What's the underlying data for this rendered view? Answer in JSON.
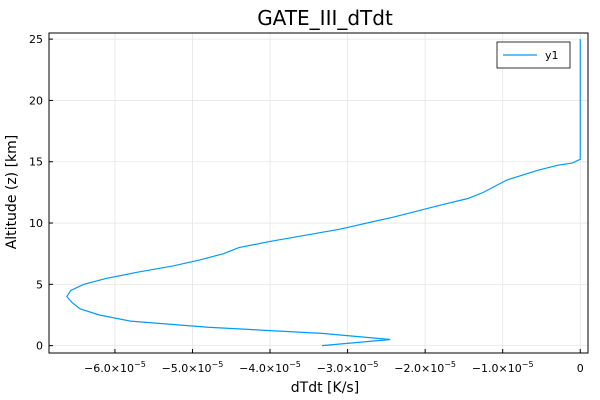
{
  "chart_data": {
    "type": "line",
    "title": "GATE_III_dTdt",
    "xlabel": "dTdt [K/s]",
    "ylabel": "Altitude (z) [km]",
    "xlim": [
      -6.85e-05,
      1e-06
    ],
    "ylim": [
      -0.6,
      25.5
    ],
    "grid": true,
    "legend_position": "top-right",
    "x_ticks": [
      {
        "value": -6e-05,
        "base": "−6.0×10",
        "exp": "−5"
      },
      {
        "value": -5e-05,
        "base": "−5.0×10",
        "exp": "−5"
      },
      {
        "value": -4e-05,
        "base": "−4.0×10",
        "exp": "−5"
      },
      {
        "value": -3e-05,
        "base": "−3.0×10",
        "exp": "−5"
      },
      {
        "value": -2e-05,
        "base": "−2.0×10",
        "exp": "−5"
      },
      {
        "value": -1e-05,
        "base": "−1.0×10",
        "exp": "−5"
      },
      {
        "value": 0,
        "base": "0",
        "exp": ""
      }
    ],
    "y_ticks": [
      0,
      5,
      10,
      15,
      20,
      25
    ],
    "series": [
      {
        "name": "y1",
        "color": "#009af9",
        "x": [
          -3.33e-05,
          -2.45e-05,
          -3.33e-05,
          -4.8e-05,
          -5.8e-05,
          -6.2e-05,
          -6.45e-05,
          -6.55e-05,
          -6.62e-05,
          -6.57e-05,
          -6.4e-05,
          -6.1e-05,
          -5.7e-05,
          -5.25e-05,
          -4.9e-05,
          -4.6e-05,
          -4.4e-05,
          -4e-05,
          -3.55e-05,
          -3.1e-05,
          -2.4e-05,
          -1.78e-05,
          -1.45e-05,
          -1.25e-05,
          -9.5e-06,
          -5.5e-06,
          -3e-06,
          -1e-06,
          0,
          0,
          0,
          0
        ],
        "y": [
          0,
          0.5,
          1.0,
          1.5,
          2.0,
          2.5,
          3.0,
          3.5,
          4.0,
          4.5,
          5.0,
          5.5,
          6.0,
          6.5,
          7.0,
          7.5,
          8.0,
          8.5,
          9.0,
          9.5,
          10.5,
          11.5,
          12.0,
          12.5,
          13.5,
          14.3,
          14.7,
          14.9,
          15.2,
          20.0,
          24.0,
          25.0
        ]
      }
    ]
  }
}
